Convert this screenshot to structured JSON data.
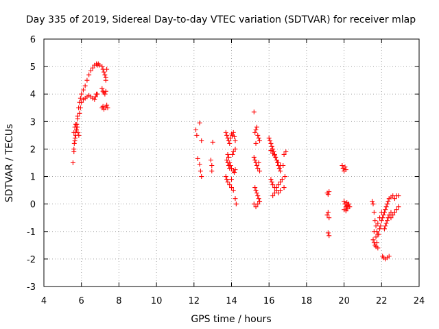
{
  "chart_data": {
    "type": "scatter",
    "title": "Day 335 of 2019, Sidereal Day-to-day VTEC variation (SDTVAR) for receiver mlap",
    "xlabel": "GPS time / hours",
    "ylabel": "SDTVAR / TECUs",
    "xlim": [
      4,
      24
    ],
    "ylim": [
      -3,
      6
    ],
    "xticks": [
      4,
      6,
      8,
      10,
      12,
      14,
      16,
      18,
      20,
      22,
      24
    ],
    "yticks": [
      -3,
      -2,
      -1,
      0,
      1,
      2,
      3,
      4,
      5,
      6
    ],
    "grid": true,
    "marker": "+",
    "color": "#ff0000",
    "series": [
      {
        "name": "SDTVAR",
        "x": [
          5.55,
          5.6,
          5.65,
          5.7,
          5.75,
          5.8,
          5.85,
          5.9,
          5.95,
          6.0,
          6.1,
          6.2,
          6.3,
          6.4,
          6.5,
          6.6,
          6.7,
          6.8,
          6.85,
          6.9,
          6.95,
          5.6,
          5.65,
          5.7,
          5.8,
          5.9,
          5.95,
          6.0,
          6.1,
          6.2,
          6.3,
          6.4,
          6.5,
          6.6,
          6.7,
          6.75,
          6.8,
          6.85,
          5.6,
          5.62,
          5.66,
          5.7,
          5.74,
          5.78,
          5.82,
          5.86,
          7.1,
          7.15,
          7.2,
          7.25,
          7.3,
          7.35,
          7.1,
          7.15,
          7.2,
          7.25,
          7.3,
          7.1,
          7.15,
          7.2,
          7.3,
          7.35,
          7.4,
          7.3,
          12.1,
          12.15,
          12.3,
          12.4,
          12.4,
          12.2,
          12.9,
          12.95,
          12.95,
          13.0,
          12.3,
          12.35,
          13.7,
          13.75,
          13.8,
          13.85,
          13.9,
          13.95,
          14.0,
          14.05,
          14.1,
          14.15,
          14.2,
          13.8,
          13.85,
          13.9,
          13.95,
          14.0,
          14.1,
          14.15,
          14.2,
          13.7,
          13.75,
          13.8,
          13.9,
          14.0,
          13.75,
          13.8,
          13.85,
          13.9,
          14.0,
          14.1,
          14.2,
          14.25,
          14.2,
          14.1,
          14.05,
          15.2,
          15.25,
          15.3,
          15.35,
          15.4,
          15.45,
          15.5,
          15.2,
          15.25,
          15.3,
          15.35,
          15.4,
          15.45,
          15.5,
          15.25,
          15.3,
          15.35,
          15.4,
          15.45,
          15.5,
          15.2,
          15.3,
          15.4,
          15.5,
          15.3,
          16.0,
          16.05,
          16.1,
          16.15,
          16.2,
          16.25,
          16.3,
          16.35,
          16.4,
          16.45,
          16.5,
          16.55,
          16.6,
          16.1,
          16.2,
          16.3,
          16.4,
          16.5,
          16.6,
          16.1,
          16.15,
          16.2,
          16.3,
          16.4,
          16.5,
          16.6,
          16.2,
          16.3,
          16.4,
          16.5,
          16.6,
          16.7,
          16.8,
          16.85,
          16.9,
          16.75,
          16.8,
          19.1,
          19.15,
          19.2,
          19.1,
          19.15,
          19.2,
          19.15,
          19.2,
          19.9,
          19.95,
          20.0,
          20.05,
          20.1,
          20.15,
          20.2,
          20.0,
          20.05,
          20.1,
          20.15,
          20.2,
          20.25,
          20.3,
          20.0,
          20.1,
          20.2,
          21.5,
          21.55,
          21.6,
          21.65,
          21.7,
          21.75,
          21.8,
          21.55,
          21.6,
          21.65,
          21.7,
          21.75,
          21.8,
          21.85,
          21.9,
          21.95,
          22.0,
          22.05,
          22.1,
          22.15,
          22.2,
          22.25,
          22.3,
          22.35,
          22.4,
          22.5,
          22.6,
          22.7,
          22.8,
          22.9,
          22.05,
          22.1,
          22.2,
          22.3,
          22.4,
          22.5,
          22.6,
          22.7,
          22.8,
          22.9,
          22.15,
          22.2,
          22.25,
          22.3,
          22.35,
          22.4,
          22.5,
          21.6,
          21.7,
          21.8,
          21.9,
          22.0
        ],
        "y": [
          1.5,
          1.9,
          2.3,
          2.6,
          2.9,
          3.2,
          3.5,
          3.7,
          3.85,
          4.0,
          4.15,
          4.3,
          4.5,
          4.7,
          4.85,
          4.95,
          5.05,
          5.1,
          5.05,
          5.1,
          5.05,
          2.6,
          2.8,
          2.9,
          3.1,
          3.3,
          3.5,
          3.7,
          3.8,
          3.85,
          3.9,
          3.95,
          3.9,
          3.85,
          3.8,
          3.9,
          4.0,
          4.0,
          2.0,
          2.2,
          2.4,
          2.5,
          2.7,
          2.8,
          2.6,
          2.5,
          5.0,
          4.9,
          4.8,
          4.7,
          4.5,
          4.9,
          4.2,
          4.1,
          4.05,
          4.0,
          4.1,
          3.5,
          3.55,
          3.45,
          3.5,
          3.6,
          3.5,
          4.6,
          2.7,
          2.5,
          2.95,
          2.3,
          1.0,
          1.65,
          1.6,
          1.4,
          1.2,
          2.25,
          1.45,
          1.2,
          2.6,
          2.5,
          2.4,
          2.3,
          2.2,
          2.4,
          2.55,
          2.5,
          2.6,
          2.45,
          2.3,
          1.8,
          1.7,
          1.5,
          1.4,
          1.3,
          1.2,
          1.15,
          1.25,
          1.0,
          0.9,
          0.8,
          0.7,
          0.6,
          1.6,
          1.5,
          1.4,
          1.3,
          0.9,
          0.5,
          0.2,
          0.0,
          2.0,
          1.9,
          1.8,
          3.35,
          2.6,
          2.7,
          2.8,
          2.5,
          2.4,
          2.3,
          1.7,
          1.6,
          1.5,
          1.4,
          1.3,
          1.5,
          1.2,
          0.6,
          0.5,
          0.4,
          0.3,
          0.2,
          0.1,
          0.0,
          -0.1,
          0.0,
          0.1,
          2.2,
          2.4,
          2.3,
          2.2,
          2.1,
          2.0,
          1.9,
          1.8,
          1.7,
          1.6,
          1.5,
          1.4,
          1.3,
          1.2,
          1.95,
          1.85,
          1.75,
          1.6,
          1.5,
          1.4,
          0.9,
          0.8,
          0.7,
          0.6,
          0.5,
          0.4,
          0.5,
          0.3,
          0.4,
          0.6,
          0.7,
          0.8,
          0.9,
          0.6,
          1.0,
          1.9,
          1.4,
          1.8,
          0.4,
          0.35,
          0.45,
          -0.4,
          -0.3,
          -0.5,
          -1.05,
          -1.15,
          1.4,
          1.3,
          1.2,
          1.35,
          1.25,
          0.05,
          -0.05,
          0.1,
          0.0,
          -0.1,
          -0.15,
          -0.05,
          0.0,
          -0.1,
          -0.2,
          -0.25,
          -0.15,
          0.1,
          0.0,
          -0.3,
          -0.6,
          -0.8,
          -1.0,
          -1.1,
          -1.3,
          -1.4,
          -1.5,
          -1.55,
          -1.4,
          -1.6,
          -1.1,
          -0.9,
          -0.8,
          -0.6,
          -0.5,
          -0.4,
          -0.3,
          -0.2,
          -0.1,
          0.0,
          0.1,
          0.2,
          0.25,
          0.3,
          0.2,
          0.3,
          0.3,
          -1.9,
          -1.95,
          -2.0,
          -1.95,
          -1.9,
          -0.5,
          -0.4,
          -0.3,
          -0.2,
          -0.1,
          -0.9,
          -0.8,
          -0.7,
          -0.6,
          -0.5,
          -0.4,
          -0.3,
          -1.0,
          -1.2,
          -0.7,
          -0.5,
          -0.3
        ]
      }
    ]
  }
}
